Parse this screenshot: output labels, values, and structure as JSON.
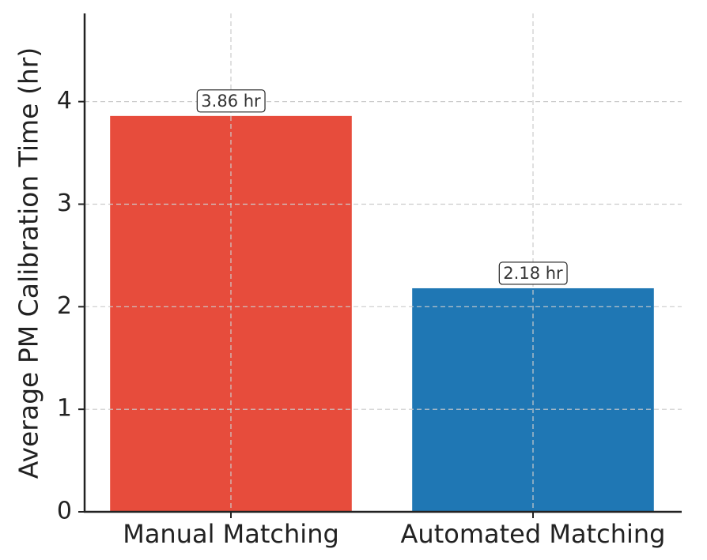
{
  "chart_data": {
    "type": "bar",
    "ylabel": "Average PM Calibration Time (hr)",
    "categories": [
      "Manual Matching",
      "Automated Matching"
    ],
    "values": [
      3.86,
      2.18
    ],
    "value_labels": [
      "3.86 hr",
      "2.18 hr"
    ],
    "colors": [
      "#e74c3c",
      "#1f77b4"
    ],
    "ylim": [
      0,
      4.86
    ],
    "yticks": [
      0,
      1,
      2,
      3,
      4
    ],
    "grid": true
  }
}
